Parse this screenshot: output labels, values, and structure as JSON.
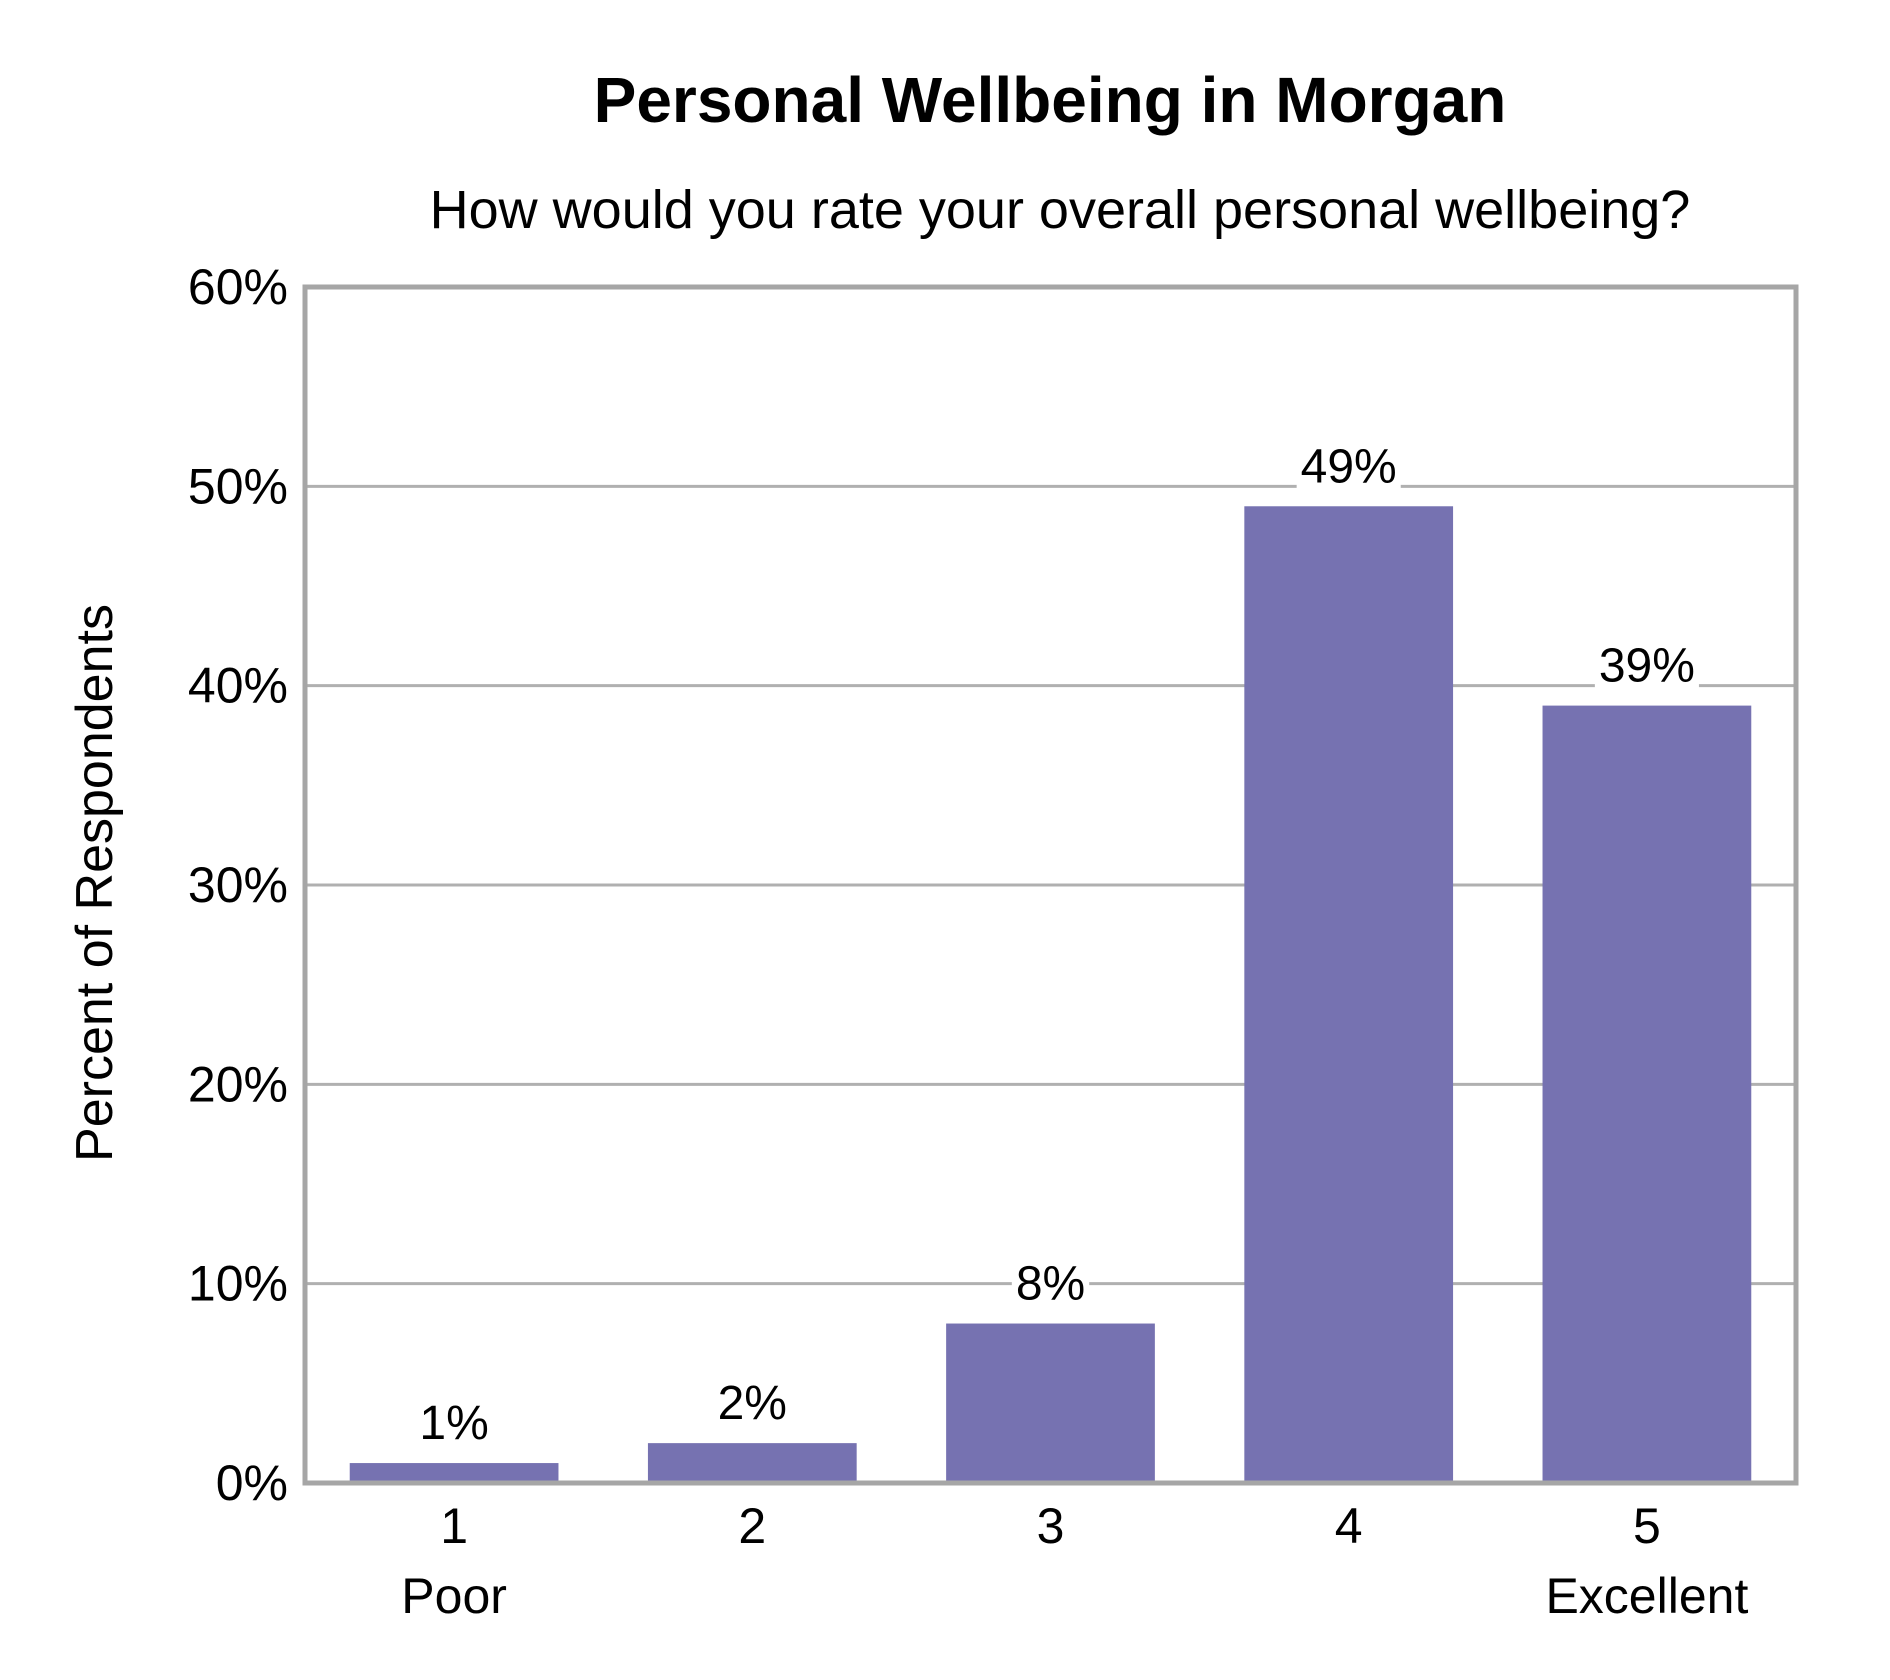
{
  "chart_data": {
    "type": "bar",
    "title": "Personal Wellbeing in Morgan",
    "subtitle": "How would you rate your overall personal wellbeing?",
    "xlabel": "",
    "ylabel": "Percent of Respondents",
    "categories": [
      "1",
      "2",
      "3",
      "4",
      "5"
    ],
    "category_sublabels": [
      "Poor",
      "",
      "",
      "",
      "Excellent"
    ],
    "values": [
      1,
      2,
      8,
      49,
      39
    ],
    "data_labels": [
      "1%",
      "2%",
      "8%",
      "49%",
      "39%"
    ],
    "ylim": [
      0,
      60
    ],
    "yticks": [
      0,
      10,
      20,
      30,
      40,
      50,
      60
    ],
    "ytick_labels": [
      "0%",
      "10%",
      "20%",
      "30%",
      "40%",
      "50%",
      "60%"
    ],
    "grid": true,
    "colors": {
      "bar": "#7672b1",
      "grid": "#b0b0b0",
      "frame": "#a6a6a6"
    }
  }
}
